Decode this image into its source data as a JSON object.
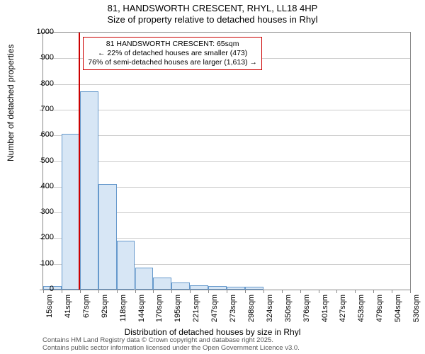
{
  "title": {
    "line1": "81, HANDSWORTH CRESCENT, RHYL, LL18 4HP",
    "line2": "Size of property relative to detached houses in Rhyl"
  },
  "axes": {
    "ylabel": "Number of detached properties",
    "xlabel": "Distribution of detached houses by size in Rhyl",
    "ylim": [
      0,
      1000
    ],
    "ytick_step": 100,
    "label_fontsize": 12,
    "tick_fontsize": 11
  },
  "chart": {
    "type": "histogram",
    "x_tick_labels": [
      "15sqm",
      "41sqm",
      "67sqm",
      "92sqm",
      "118sqm",
      "144sqm",
      "170sqm",
      "195sqm",
      "221sqm",
      "247sqm",
      "273sqm",
      "298sqm",
      "324sqm",
      "350sqm",
      "376sqm",
      "401sqm",
      "427sqm",
      "453sqm",
      "479sqm",
      "504sqm",
      "530sqm"
    ],
    "bar_values": [
      14,
      605,
      772,
      410,
      190,
      85,
      48,
      28,
      16,
      14,
      12,
      10,
      0,
      0,
      0,
      0,
      0,
      0,
      0,
      0
    ],
    "bar_fill": "#d7e6f5",
    "bar_border": "#6699cc",
    "grid_color": "#cccccc",
    "axis_border": "#888888",
    "background": "#ffffff"
  },
  "marker": {
    "x_sqm": 65,
    "x_range": [
      15,
      530
    ],
    "color": "#cc0000"
  },
  "annotation": {
    "line1": "81 HANDSWORTH CRESCENT: 65sqm",
    "line2": "← 22% of detached houses are smaller (473)",
    "line3": "76% of semi-detached houses are larger (1,613) →",
    "border_color": "#cc0000",
    "fontsize": 10.5
  },
  "footer": {
    "line1": "Contains HM Land Registry data © Crown copyright and database right 2025.",
    "line2": "Contains public sector information licensed under the Open Government Licence v3.0."
  }
}
